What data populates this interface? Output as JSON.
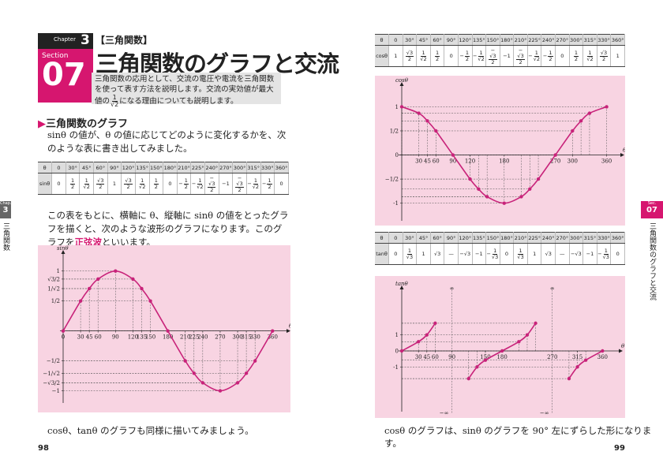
{
  "left_page": {
    "chapter_label": "Chapter",
    "chapter_num": "3",
    "section_label": "Section",
    "section_num": "07",
    "category": "【三角関数】",
    "title": "三角関数のグラフと交流",
    "intro_before": "三角関数の応用として、交流の電圧や電流を三角関数を使って表す方法を説明します。交流の実効値が最大値の",
    "intro_frac": {
      "num": "1",
      "den": "√2"
    },
    "intro_after": "になる理由についても説明します。",
    "heading": "三角関数のグラフ",
    "para1": "sinθ の値が、θ の値に応じてどのように変化するかを、次のような表に書き出してみました。",
    "sin_table": {
      "header": [
        "θ",
        "0",
        "30°",
        "45°",
        "60°",
        "90°",
        "120°",
        "135°",
        "150°",
        "180°",
        "210°",
        "225°",
        "240°",
        "270°",
        "300°",
        "315°",
        "330°",
        "360°"
      ],
      "row_label": "sinθ",
      "cells": [
        "0",
        {
          "num": "1",
          "den": "2"
        },
        {
          "num": "1",
          "den": "√2"
        },
        {
          "num": "√3",
          "den": "2"
        },
        "1",
        {
          "num": "√3",
          "den": "2"
        },
        {
          "num": "1",
          "den": "√2"
        },
        {
          "num": "1",
          "den": "2"
        },
        "0",
        {
          "sign": "−",
          "num": "1",
          "den": "2"
        },
        {
          "sign": "−",
          "num": "1",
          "den": "√2"
        },
        {
          "sign": "−",
          "num": "√3",
          "den": "2"
        },
        "−1",
        {
          "sign": "−",
          "num": "√3",
          "den": "2"
        },
        {
          "sign": "−",
          "num": "1",
          "den": "√2"
        },
        {
          "sign": "−",
          "num": "1",
          "den": "2"
        },
        "0"
      ]
    },
    "para2_before": "この表をもとに、横軸に θ、縦軸に sinθ の値をとったグラフを描くと、次のような波形のグラフになります。このグラフを",
    "para2_term": "正弦波",
    "para2_after": "といいます。",
    "para3": "cosθ、tanθ のグラフも同様に描いてみましょう。",
    "page_number": "98",
    "side_tab": {
      "label": "Chap.",
      "num": "3",
      "text": "三角関数"
    }
  },
  "right_page": {
    "cos_table": {
      "header": [
        "θ",
        "0",
        "30°",
        "45°",
        "60°",
        "90°",
        "120°",
        "135°",
        "150°",
        "180°",
        "210°",
        "225°",
        "240°",
        "270°",
        "300°",
        "315°",
        "330°",
        "360°"
      ],
      "row_label": "cosθ",
      "cells": [
        "1",
        {
          "num": "√3",
          "den": "2"
        },
        {
          "num": "1",
          "den": "√2"
        },
        {
          "num": "1",
          "den": "2"
        },
        "0",
        {
          "sign": "−",
          "num": "1",
          "den": "2"
        },
        {
          "sign": "−",
          "num": "1",
          "den": "√2"
        },
        {
          "sign": "−",
          "num": "√3",
          "den": "2"
        },
        "−1",
        {
          "sign": "−",
          "num": "√3",
          "den": "2"
        },
        {
          "sign": "−",
          "num": "1",
          "den": "√2"
        },
        {
          "sign": "−",
          "num": "1",
          "den": "2"
        },
        "0",
        {
          "num": "1",
          "den": "2"
        },
        {
          "num": "1",
          "den": "√2"
        },
        {
          "num": "√3",
          "den": "2"
        },
        "1"
      ]
    },
    "tan_table": {
      "header": [
        "θ",
        "0",
        "30°",
        "45°",
        "60°",
        "90°",
        "120°",
        "135°",
        "150°",
        "180°",
        "210°",
        "225°",
        "240°",
        "270°",
        "300°",
        "315°",
        "330°",
        "360°"
      ],
      "row_label": "tanθ",
      "cells": [
        "0",
        {
          "num": "1",
          "den": "√3"
        },
        "1",
        "√3",
        "—",
        "−√3",
        "−1",
        {
          "sign": "−",
          "num": "1",
          "den": "√3"
        },
        "0",
        {
          "num": "1",
          "den": "√3"
        },
        "1",
        "√3",
        "—",
        "−√3",
        "−1",
        {
          "sign": "−",
          "num": "1",
          "den": "√3"
        },
        "0"
      ]
    },
    "caption": "cosθ のグラフは、sinθ のグラフを 90° 左にずらした形になります。",
    "page_number": "99",
    "side_tab": {
      "label": "Sec.",
      "num": "07",
      "text": "三角関数のグラフと交流"
    }
  },
  "chart_data": [
    {
      "type": "line",
      "y_label": "sinθ",
      "x_label": "θ(°)",
      "x": [
        0,
        30,
        45,
        60,
        90,
        120,
        135,
        150,
        180,
        210,
        225,
        240,
        270,
        300,
        315,
        330,
        360
      ],
      "series": [
        {
          "color": "#c8237a",
          "values": [
            0,
            0.5,
            0.707,
            0.866,
            1,
            0.866,
            0.707,
            0.5,
            0,
            -0.5,
            -0.707,
            -0.866,
            -1,
            -0.866,
            -0.707,
            -0.5,
            0
          ]
        }
      ],
      "xlim": [
        0,
        380
      ],
      "ylim": [
        -1.15,
        1.22
      ],
      "xticks": [
        0,
        30,
        45,
        60,
        90,
        120,
        135,
        150,
        180,
        210,
        225,
        240,
        270,
        300,
        315,
        330,
        360
      ],
      "yticks": [
        1,
        {
          "value": 0.866,
          "label": "√3/2"
        },
        {
          "value": 0.707,
          "label": "1/√2"
        },
        {
          "value": 0.5,
          "label": "1/2"
        },
        {
          "value": -0.5,
          "label": "−1/2"
        },
        {
          "value": -0.707,
          "label": "−1/√2"
        },
        {
          "value": -0.866,
          "label": "−√3/2"
        },
        {
          "value": -1,
          "label": "−1"
        }
      ],
      "background": "#f8d4e2"
    },
    {
      "type": "line",
      "y_label": "cosθ",
      "x_label": "θ",
      "x": [
        0,
        30,
        45,
        60,
        90,
        120,
        135,
        150,
        180,
        210,
        225,
        240,
        270,
        300,
        315,
        330,
        360
      ],
      "series": [
        {
          "color": "#c8237a",
          "values": [
            1,
            0.866,
            0.707,
            0.5,
            0,
            -0.5,
            -0.707,
            -0.866,
            -1,
            -0.866,
            -0.707,
            -0.5,
            0,
            0.5,
            0.707,
            0.866,
            1
          ]
        }
      ],
      "xlim": [
        0,
        380
      ],
      "ylim": [
        -1.3,
        1.35
      ],
      "xticks": [
        30,
        45,
        60,
        90,
        120,
        180,
        270,
        300,
        360
      ],
      "yticks": [
        1,
        {
          "value": 0.5,
          "label": "1/2"
        },
        0,
        {
          "value": -0.5,
          "label": "−1/2"
        },
        -1
      ],
      "background": "#f8d4e2"
    },
    {
      "type": "line",
      "y_label": "tanθ",
      "x_label": "θ",
      "x": [
        0,
        30,
        45,
        60,
        90,
        120,
        135,
        150,
        180,
        210,
        225,
        240,
        270,
        300,
        315,
        330,
        360
      ],
      "series": [
        {
          "color": "#c8237a",
          "values": [
            0,
            0.577,
            1,
            1.732,
            null,
            -1.732,
            -1,
            -0.577,
            0,
            0.577,
            1,
            1.732,
            null,
            -1.732,
            -1,
            -0.577,
            0
          ]
        }
      ],
      "xlim": [
        0,
        385
      ],
      "ylim": [
        -3.6,
        3.6
      ],
      "xticks": [
        30,
        45,
        60,
        90,
        150,
        180,
        270,
        315,
        360
      ],
      "yticks": [
        1,
        0,
        -1
      ],
      "annotations": [
        "∞",
        "∞",
        "−∞",
        "−∞"
      ],
      "background": "#f8d4e2"
    }
  ]
}
